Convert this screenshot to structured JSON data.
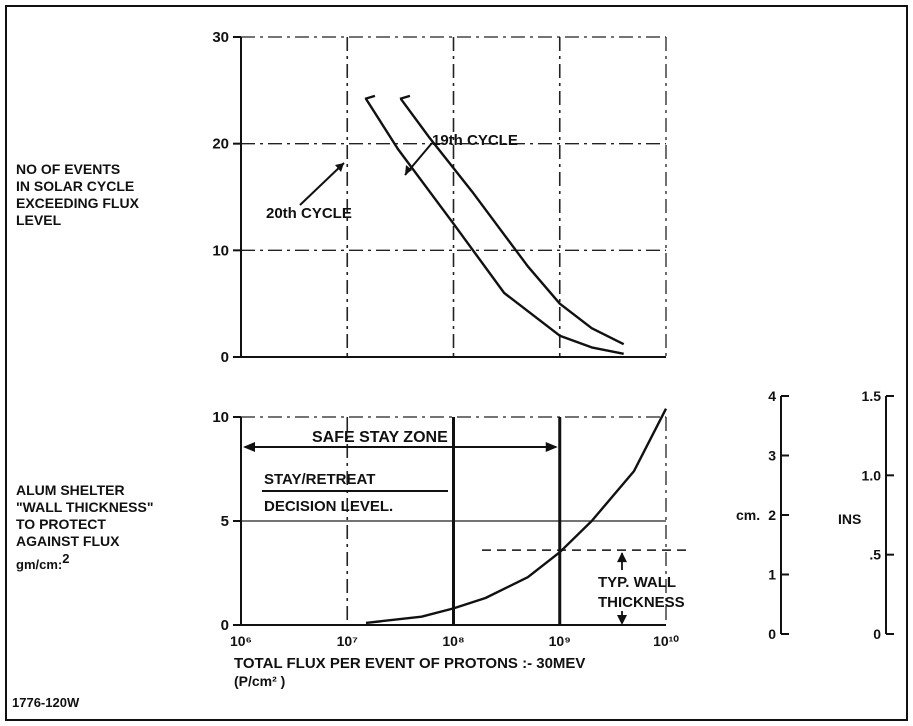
{
  "figure_id": "1776-120W",
  "chart_data": [
    {
      "type": "line",
      "title": "",
      "ylabel": [
        "NO OF EVENTS",
        "IN SOLAR CYCLE",
        "EXCEEDING FLUX",
        "LEVEL"
      ],
      "y_ticks": [
        "0",
        "10",
        "20",
        "30"
      ],
      "ylim": [
        0,
        30
      ],
      "x_scale": "log",
      "xlim": [
        1000000.0,
        10000000000.0
      ],
      "grid": "dash-dot",
      "series": [
        {
          "name": "19th CYCLE",
          "x": [
            32000000.0,
            60000000.0,
            150000000.0,
            500000000.0,
            1000000000.0,
            2000000000.0,
            4000000000.0
          ],
          "y": [
            24.2,
            20.5,
            15.5,
            8.5,
            5,
            2.7,
            1.2
          ]
        },
        {
          "name": "20th CYCLE",
          "x": [
            15000000.0,
            30000000.0,
            100000000.0,
            300000000.0,
            1000000000.0,
            2000000000.0,
            4000000000.0
          ],
          "y": [
            24.2,
            19.5,
            12.5,
            6,
            2,
            0.9,
            0.3
          ]
        }
      ]
    },
    {
      "type": "line",
      "title": "",
      "ylabel": [
        "ALUM SHELTER",
        "\"WALL THICKNESS\"",
        "TO PROTECT",
        "AGAINST FLUX"
      ],
      "ylabel_unit": "gm/cm:",
      "ylabel_unit_sup": "2",
      "y_ticks": [
        "0",
        "5",
        "10"
      ],
      "ylim": [
        0,
        10
      ],
      "xlabel": "TOTAL FLUX PER EVENT OF PROTONS :- 30MEV",
      "xlabel_unit": "(P/cm² )",
      "x_ticks": [
        "10⁶",
        "10⁷",
        "10⁸",
        "10⁹",
        "10¹⁰"
      ],
      "x_scale": "log",
      "xlim": [
        1000000.0,
        10000000000.0
      ],
      "grid": "dash-dot",
      "series": [
        {
          "name": "",
          "x": [
            15000000.0,
            50000000.0,
            100000000.0,
            200000000.0,
            500000000.0,
            1000000000.0,
            2000000000.0,
            5000000000.0,
            10000000000.0
          ],
          "y": [
            0.1,
            0.4,
            0.8,
            1.3,
            2.3,
            3.5,
            5,
            7.4,
            10.4
          ]
        }
      ],
      "annotations": {
        "safe_stay_zone": "SAFE STAY ZONE",
        "stay_retreat_line1": "STAY/RETREAT",
        "stay_retreat_line2": "DECISION LEVEL.",
        "typ_wall_line1": "TYP. WALL",
        "typ_wall_line2": "THICKNESS",
        "typ_wall_level": 3.6,
        "stay_retreat_x": 100000000.0,
        "safe_stay_x": 1000000000.0
      }
    }
  ],
  "aux_scales": {
    "cm": {
      "label": "cm.",
      "ticks": [
        "0",
        "1",
        "2",
        "3",
        "4"
      ],
      "range": [
        0,
        4
      ]
    },
    "ins": {
      "label": "INS",
      "ticks": [
        "0",
        ".5",
        "1.0",
        "1.5"
      ],
      "range": [
        0,
        1.5
      ]
    }
  }
}
